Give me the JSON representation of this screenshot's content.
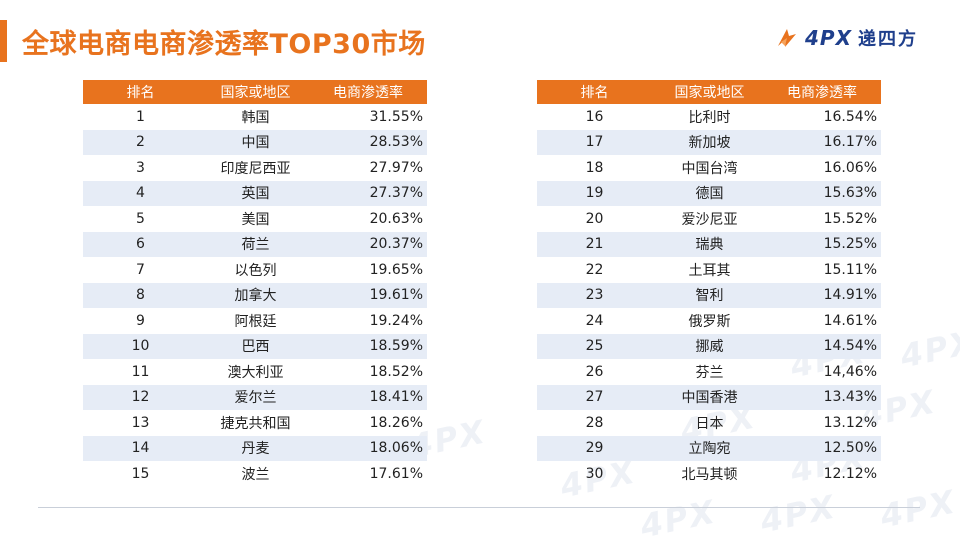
{
  "title": "全球电商电商渗透率TOP30市场",
  "logo": {
    "text": "4PX",
    "cn": "递四方"
  },
  "colors": {
    "accent": "#e8731e",
    "row_alt": "#e6ecf6",
    "logo": "#1f3f8c"
  },
  "table": {
    "headers": [
      "排名",
      "国家或地区",
      "电商渗透率"
    ],
    "left_rows": [
      {
        "rank": "1",
        "country": "韩国",
        "rate": "31.55%"
      },
      {
        "rank": "2",
        "country": "中国",
        "rate": "28.53%"
      },
      {
        "rank": "3",
        "country": "印度尼西亚",
        "rate": "27.97%"
      },
      {
        "rank": "4",
        "country": "英国",
        "rate": "27.37%"
      },
      {
        "rank": "5",
        "country": "美国",
        "rate": "20.63%"
      },
      {
        "rank": "6",
        "country": "荷兰",
        "rate": "20.37%"
      },
      {
        "rank": "7",
        "country": "以色列",
        "rate": "19.65%"
      },
      {
        "rank": "8",
        "country": "加拿大",
        "rate": "19.61%"
      },
      {
        "rank": "9",
        "country": "阿根廷",
        "rate": "19.24%"
      },
      {
        "rank": "10",
        "country": "巴西",
        "rate": "18.59%"
      },
      {
        "rank": "11",
        "country": "澳大利亚",
        "rate": "18.52%"
      },
      {
        "rank": "12",
        "country": "爱尔兰",
        "rate": "18.41%"
      },
      {
        "rank": "13",
        "country": "捷克共和国",
        "rate": "18.26%"
      },
      {
        "rank": "14",
        "country": "丹麦",
        "rate": "18.06%"
      },
      {
        "rank": "15",
        "country": "波兰",
        "rate": "17.61%"
      }
    ],
    "right_rows": [
      {
        "rank": "16",
        "country": "比利时",
        "rate": "16.54%"
      },
      {
        "rank": "17",
        "country": "新加坡",
        "rate": "16.17%"
      },
      {
        "rank": "18",
        "country": "中国台湾",
        "rate": "16.06%"
      },
      {
        "rank": "19",
        "country": "德国",
        "rate": "15.63%"
      },
      {
        "rank": "20",
        "country": "爱沙尼亚",
        "rate": "15.52%"
      },
      {
        "rank": "21",
        "country": "瑞典",
        "rate": "15.25%"
      },
      {
        "rank": "22",
        "country": "土耳其",
        "rate": "15.11%"
      },
      {
        "rank": "23",
        "country": "智利",
        "rate": "14.91%"
      },
      {
        "rank": "24",
        "country": "俄罗斯",
        "rate": "14.61%"
      },
      {
        "rank": "25",
        "country": "挪威",
        "rate": "14.54%"
      },
      {
        "rank": "26",
        "country": "芬兰",
        "rate": "14,46%"
      },
      {
        "rank": "27",
        "country": "中国香港",
        "rate": "13.43%"
      },
      {
        "rank": "28",
        "country": "日本",
        "rate": "13.12%"
      },
      {
        "rank": "29",
        "country": "立陶宛",
        "rate": "12.50%"
      },
      {
        "rank": "30",
        "country": "北马其顿",
        "rate": "12.12%"
      }
    ]
  },
  "watermark": {
    "text": "4PX"
  }
}
